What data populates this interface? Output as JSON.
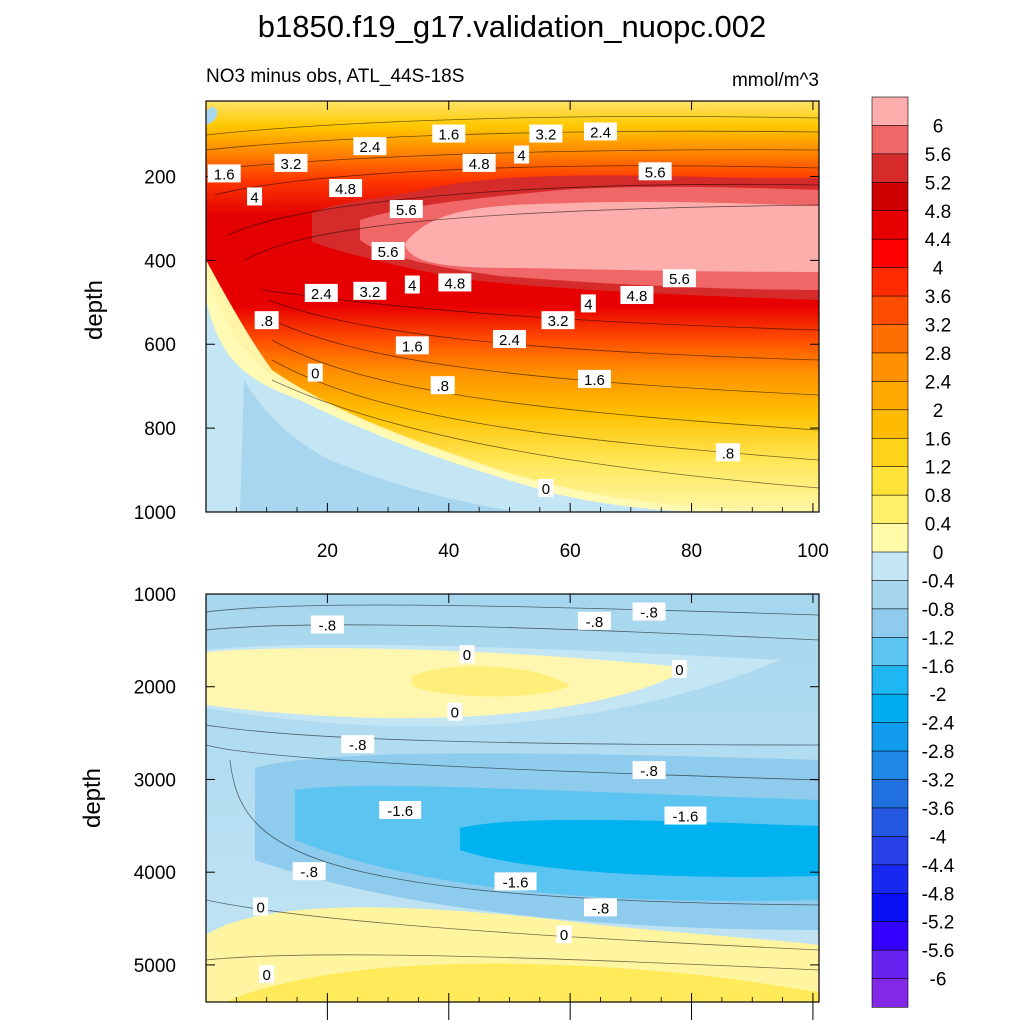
{
  "title": "b1850.f19_g17.validation_nuopc.002",
  "chart_data": {
    "type": "contour",
    "title": "b1850.f19_g17.validation_nuopc.002",
    "panels": [
      {
        "id": "upper",
        "subtitle_left": "NO3 minus obs, ATL_44S-18S",
        "subtitle_right": "mmol/m^3",
        "ylabel": "depth",
        "xlim": [
          0,
          101
        ],
        "ylim": [
          1000,
          20
        ],
        "x_ticks": [
          20,
          40,
          60,
          80,
          100
        ],
        "y_ticks": [
          200,
          400,
          600,
          800,
          1000
        ],
        "contour_labels": [
          {
            "text": "2.4",
            "x": 27,
            "y": 130
          },
          {
            "text": "1.6",
            "x": 40,
            "y": 100
          },
          {
            "text": "3.2",
            "x": 56,
            "y": 100
          },
          {
            "text": "2.4",
            "x": 65,
            "y": 95
          },
          {
            "text": "3.2",
            "x": 14,
            "y": 170
          },
          {
            "text": "4.8",
            "x": 23,
            "y": 230
          },
          {
            "text": "4.8",
            "x": 45,
            "y": 170
          },
          {
            "text": "4",
            "x": 52,
            "y": 150
          },
          {
            "text": "5.6",
            "x": 74,
            "y": 190
          },
          {
            "text": "1.6",
            "x": 3,
            "y": 195
          },
          {
            "text": "4",
            "x": 8,
            "y": 250
          },
          {
            "text": "5.6",
            "x": 33,
            "y": 280
          },
          {
            "text": "5.6",
            "x": 30,
            "y": 380
          },
          {
            "text": "5.6",
            "x": 78,
            "y": 445
          },
          {
            "text": "2.4",
            "x": 19,
            "y": 480
          },
          {
            "text": "3.2",
            "x": 27,
            "y": 475
          },
          {
            "text": "4",
            "x": 34,
            "y": 460
          },
          {
            "text": "4.8",
            "x": 41,
            "y": 455
          },
          {
            "text": "4",
            "x": 63,
            "y": 505
          },
          {
            "text": "4.8",
            "x": 71,
            "y": 485
          },
          {
            "text": ".8",
            "x": 10,
            "y": 545
          },
          {
            "text": "3.2",
            "x": 58,
            "y": 545
          },
          {
            "text": "1.6",
            "x": 34,
            "y": 605
          },
          {
            "text": "2.4",
            "x": 50,
            "y": 590
          },
          {
            "text": "0",
            "x": 18,
            "y": 670
          },
          {
            "text": ".8",
            "x": 39,
            "y": 700
          },
          {
            "text": "1.6",
            "x": 64,
            "y": 685
          },
          {
            "text": ".8",
            "x": 86,
            "y": 860
          },
          {
            "text": "0",
            "x": 56,
            "y": 945
          }
        ]
      },
      {
        "id": "lower",
        "ylabel": "depth",
        "xlim": [
          0,
          101
        ],
        "ylim": [
          5400,
          1000
        ],
        "y_ticks": [
          1000,
          2000,
          3000,
          4000,
          5000
        ],
        "contour_labels": [
          {
            "text": "-.8",
            "x": 20,
            "y": 1340
          },
          {
            "text": "-.8",
            "x": 64,
            "y": 1300
          },
          {
            "text": "-.8",
            "x": 73,
            "y": 1200
          },
          {
            "text": "0",
            "x": 43,
            "y": 1660
          },
          {
            "text": "0",
            "x": 78,
            "y": 1820
          },
          {
            "text": "0",
            "x": 41,
            "y": 2280
          },
          {
            "text": "-.8",
            "x": 25,
            "y": 2630
          },
          {
            "text": "-.8",
            "x": 73,
            "y": 2910
          },
          {
            "text": "-1.6",
            "x": 32,
            "y": 3340
          },
          {
            "text": "-1.6",
            "x": 79,
            "y": 3400
          },
          {
            "text": "-.8",
            "x": 17,
            "y": 4000
          },
          {
            "text": "-1.6",
            "x": 51,
            "y": 4110
          },
          {
            "text": "-.8",
            "x": 65,
            "y": 4390
          },
          {
            "text": "0",
            "x": 9,
            "y": 4380
          },
          {
            "text": "0",
            "x": 59,
            "y": 4680
          },
          {
            "text": "0",
            "x": 10,
            "y": 5110
          }
        ]
      }
    ],
    "colorbar": {
      "labels": [
        "6",
        "5.6",
        "5.2",
        "4.8",
        "4.4",
        "4",
        "3.6",
        "3.2",
        "2.8",
        "2.4",
        "2",
        "1.6",
        "1.2",
        "0.8",
        "0.4",
        "0",
        "-0.4",
        "-0.8",
        "-1.2",
        "-1.6",
        "-2",
        "-2.4",
        "-2.8",
        "-3.2",
        "-3.6",
        "-4",
        "-4.4",
        "-4.8",
        "-5.2",
        "-5.6",
        "-6"
      ],
      "colors": [
        "#feadad",
        "#f06767",
        "#d52b2b",
        "#cc0000",
        "#e80000",
        "#ff0000",
        "#ff2a00",
        "#ff4d00",
        "#ff6e00",
        "#ff9000",
        "#ffa900",
        "#ffbb00",
        "#ffd21c",
        "#ffe338",
        "#fff06a",
        "#fffba8",
        "#c4e5f4",
        "#a6d6ee",
        "#8ecbed",
        "#5bc4f0",
        "#1fb6f4",
        "#00aef0",
        "#119bec",
        "#1e87e8",
        "#2070e0",
        "#2458e0",
        "#2841e8",
        "#1828f0",
        "#0a10f5",
        "#3300ff",
        "#6622ee",
        "#8428e8"
      ]
    }
  }
}
